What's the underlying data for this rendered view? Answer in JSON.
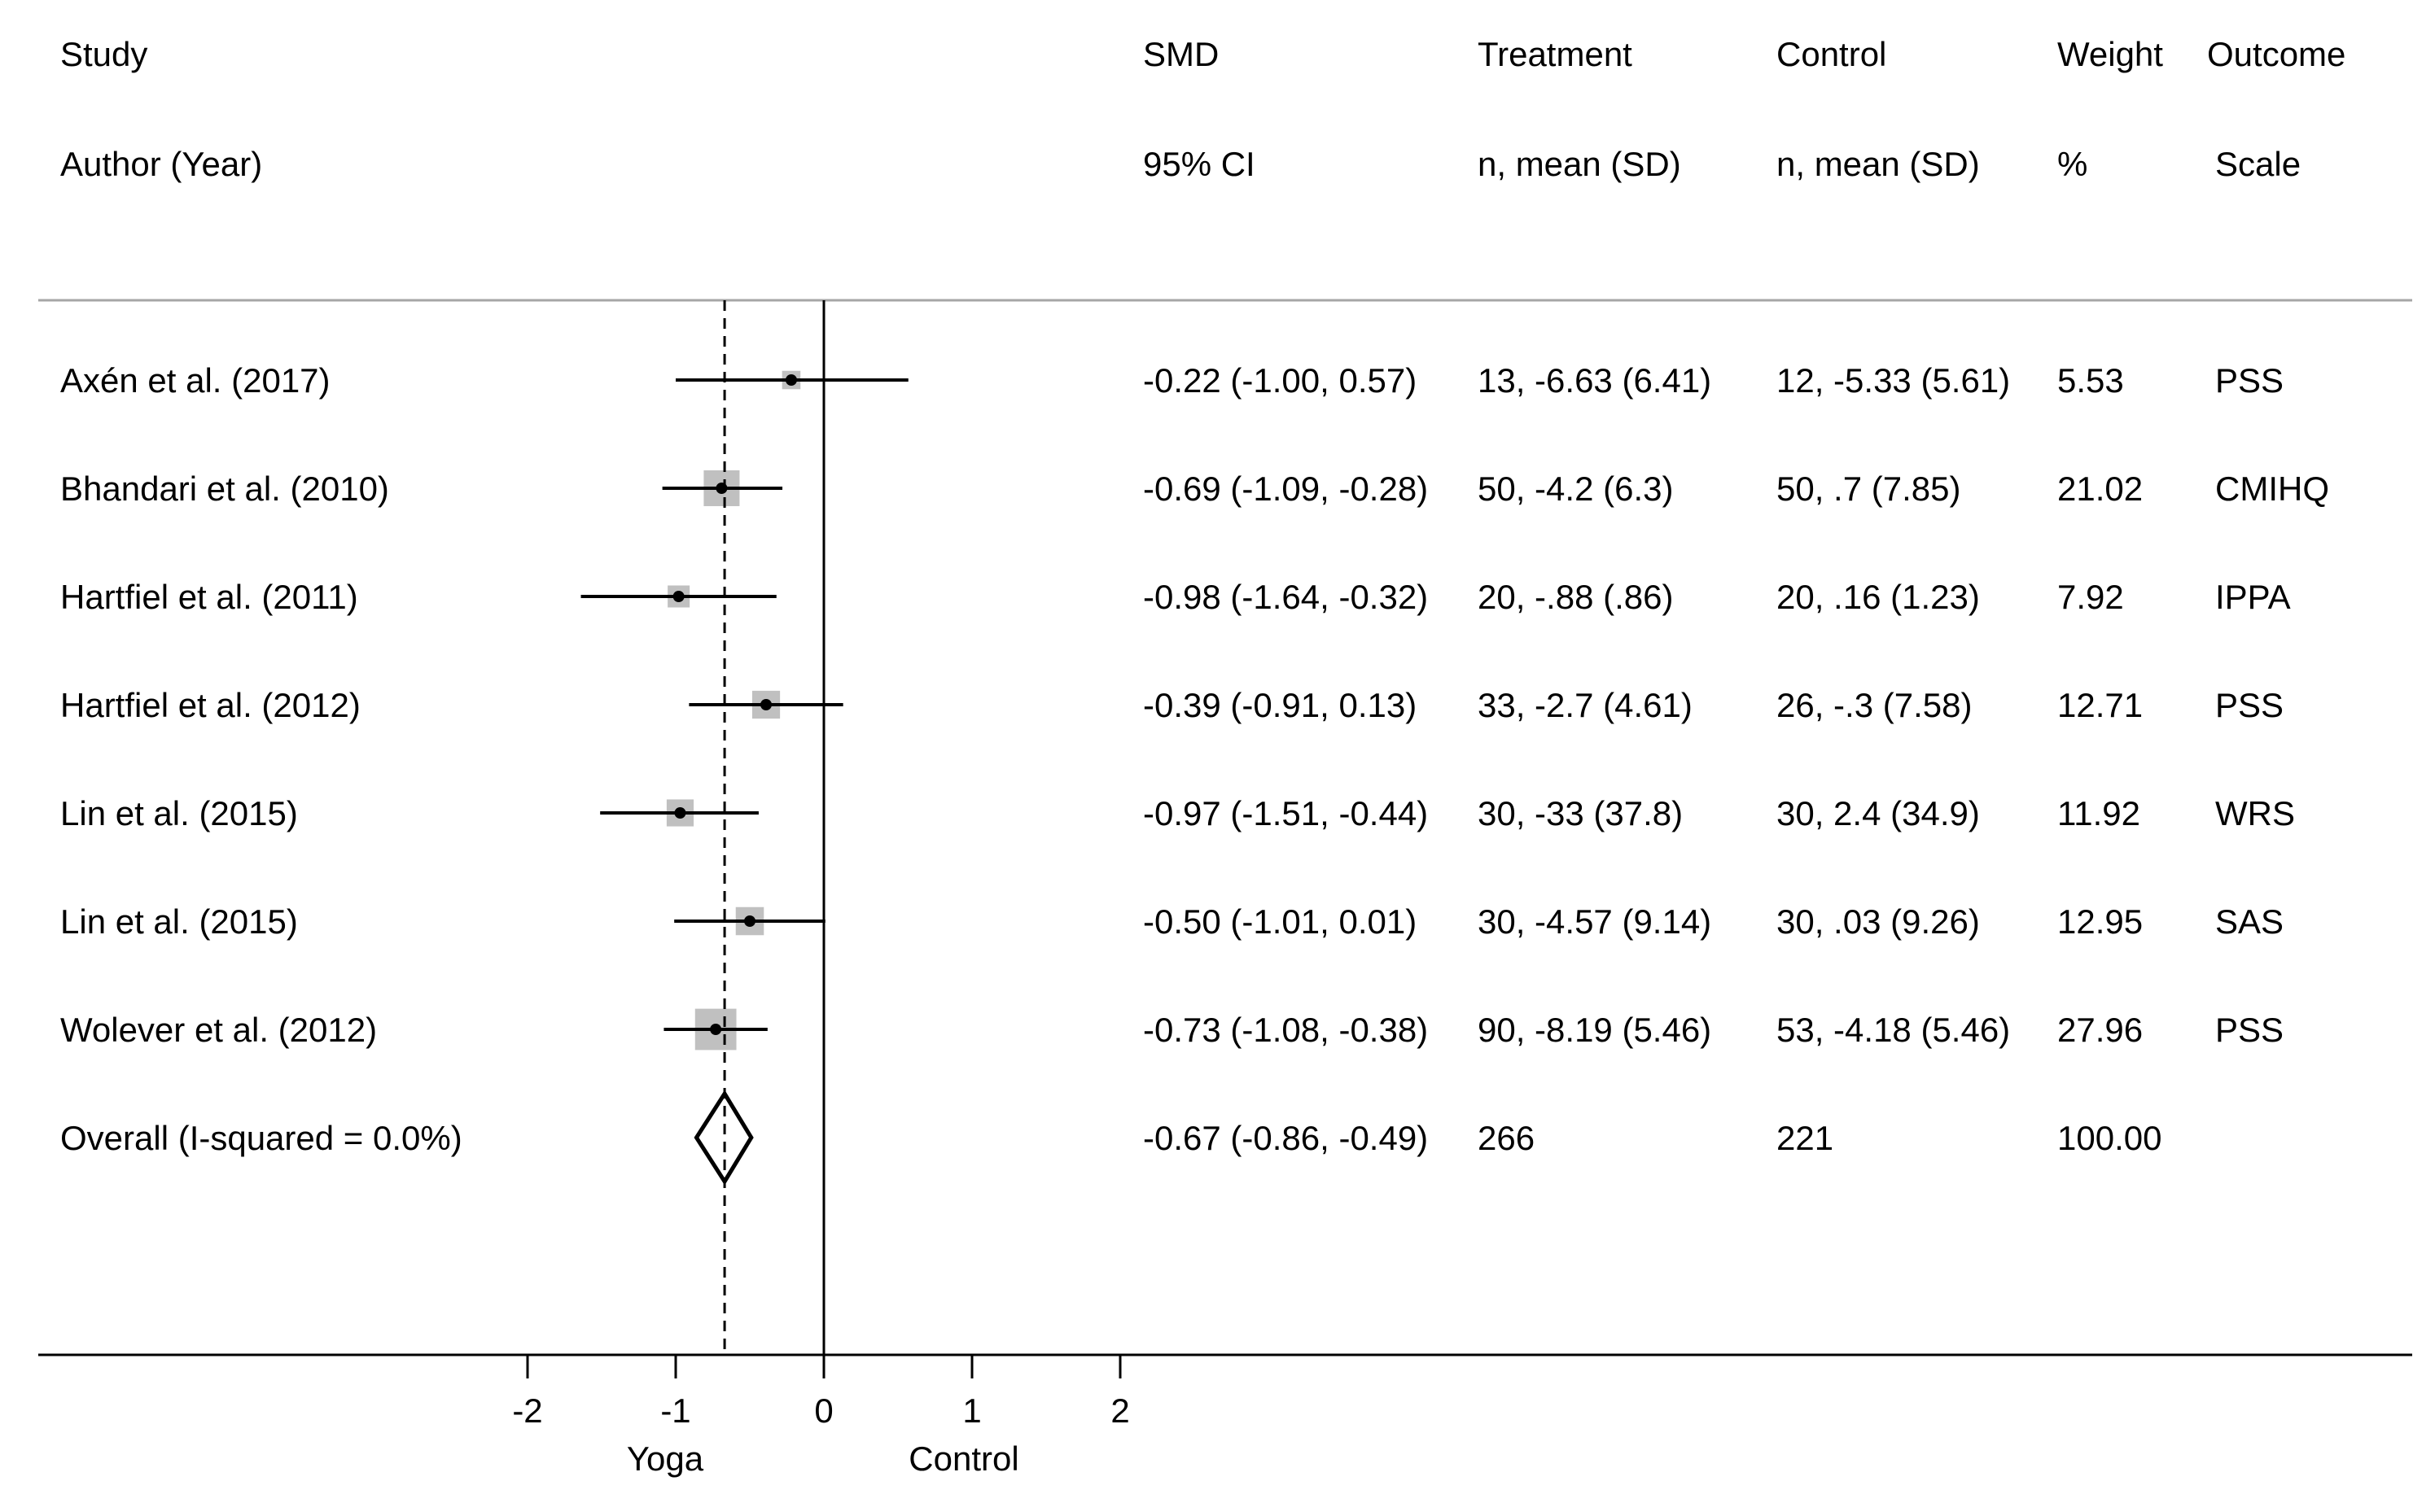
{
  "headers": {
    "study": {
      "line1": "Study",
      "line2": "Author (Year)"
    },
    "smd": {
      "line1": "SMD",
      "line2": "95% CI"
    },
    "treatment": {
      "line1": "Treatment",
      "line2": "n, mean (SD)"
    },
    "control": {
      "line1": "Control",
      "line2": "n, mean (SD)"
    },
    "weight": {
      "line1": "Weight",
      "line2": "%"
    },
    "outcome": {
      "line1": "Outcome",
      "line2": "Scale"
    }
  },
  "colors": {
    "line": "#000000",
    "weight_box": "#c0c0c0",
    "header_rule": "#a6a6a6"
  },
  "chart_data": {
    "type": "forest",
    "xlim": [
      -2,
      2
    ],
    "ticks": [
      -2,
      -1,
      0,
      1,
      2
    ],
    "tick_labels": [
      "-2",
      "-1",
      "0",
      "1",
      "2"
    ],
    "null_line": 0,
    "pooled_reference_line": -0.67,
    "favours_left": "Yoga",
    "favours_right": "Control",
    "studies": [
      {
        "label": "Axén et al.  (2017)",
        "smd": -0.22,
        "lower": -1.0,
        "upper": 0.57,
        "ci_text": "-0.22 (-1.00, 0.57)",
        "treatment": "13, -6.63 (6.41)",
        "control": "12, -5.33 (5.61)",
        "weight": 5.53,
        "weight_text": "5.53",
        "outcome": "PSS"
      },
      {
        "label": "Bhandari et al.  (2010)",
        "smd": -0.69,
        "lower": -1.09,
        "upper": -0.28,
        "ci_text": "-0.69 (-1.09, -0.28)",
        "treatment": "50, -4.2 (6.3)",
        "control": "50, .7 (7.85)",
        "weight": 21.02,
        "weight_text": "21.02",
        "outcome": "CMIHQ"
      },
      {
        "label": "Hartfiel et al. (2011)",
        "smd": -0.98,
        "lower": -1.64,
        "upper": -0.32,
        "ci_text": "-0.98 (-1.64, -0.32)",
        "treatment": "20, -.88 (.86)",
        "control": "20, .16 (1.23)",
        "weight": 7.92,
        "weight_text": "7.92",
        "outcome": "IPPA"
      },
      {
        "label": "Hartfiel et al. (2012)",
        "smd": -0.39,
        "lower": -0.91,
        "upper": 0.13,
        "ci_text": "-0.39 (-0.91, 0.13)",
        "treatment": "33, -2.7 (4.61)",
        "control": "26, -.3 (7.58)",
        "weight": 12.71,
        "weight_text": "12.71",
        "outcome": "PSS"
      },
      {
        "label": "Lin et al.  (2015)",
        "smd": -0.97,
        "lower": -1.51,
        "upper": -0.44,
        "ci_text": "-0.97 (-1.51, -0.44)",
        "treatment": "30, -33 (37.8)",
        "control": "30, 2.4 (34.9)",
        "weight": 11.92,
        "weight_text": "11.92",
        "outcome": "WRS"
      },
      {
        "label": "Lin et al.  (2015)",
        "smd": -0.5,
        "lower": -1.01,
        "upper": 0.01,
        "ci_text": "-0.50 (-1.01, 0.01)",
        "treatment": "30, -4.57 (9.14)",
        "control": "30, .03 (9.26)",
        "weight": 12.95,
        "weight_text": "12.95",
        "outcome": "SAS"
      },
      {
        "label": "Wolever et al.  (2012)",
        "smd": -0.73,
        "lower": -1.08,
        "upper": -0.38,
        "ci_text": "-0.73 (-1.08, -0.38)",
        "treatment": "90, -8.19 (5.46)",
        "control": "53, -4.18 (5.46)",
        "weight": 27.96,
        "weight_text": "27.96",
        "outcome": "PSS"
      }
    ],
    "overall": {
      "label": "Overall  (I-squared = 0.0%)",
      "smd": -0.67,
      "lower": -0.86,
      "upper": -0.49,
      "ci_text": "-0.67 (-0.86, -0.49)",
      "treatment": "266",
      "control": "221",
      "weight_text": "100.00",
      "outcome": ""
    }
  }
}
